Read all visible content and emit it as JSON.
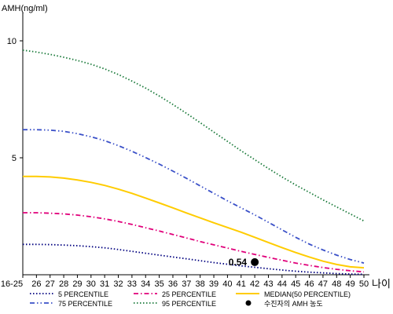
{
  "chart_data": {
    "type": "line",
    "ylabel": "AMH(ng/ml)",
    "xlabel": "나이",
    "categories": [
      "16-25",
      "26",
      "27",
      "28",
      "29",
      "30",
      "31",
      "32",
      "33",
      "34",
      "35",
      "36",
      "37",
      "38",
      "39",
      "40",
      "41",
      "42",
      "43",
      "44",
      "45",
      "46",
      "47",
      "48",
      "49",
      "50"
    ],
    "yticks": [
      5,
      10
    ],
    "ylim": [
      0,
      11
    ],
    "series": [
      {
        "name": "5 PERCENTILE",
        "color": "#00007f",
        "dash": "dot",
        "values": [
          1.3,
          1.3,
          1.29,
          1.27,
          1.24,
          1.2,
          1.15,
          1.08,
          1.0,
          0.92,
          0.84,
          0.76,
          0.68,
          0.6,
          0.52,
          0.45,
          0.38,
          0.32,
          0.26,
          0.2,
          0.15,
          0.11,
          0.08,
          0.05,
          0.03,
          0.02
        ]
      },
      {
        "name": "25 PERCENTILE",
        "color": "#e0007a",
        "dash": "dashdot",
        "values": [
          2.65,
          2.65,
          2.63,
          2.6,
          2.55,
          2.48,
          2.39,
          2.28,
          2.15,
          2.01,
          1.87,
          1.72,
          1.57,
          1.42,
          1.28,
          1.14,
          1.0,
          0.87,
          0.74,
          0.62,
          0.5,
          0.4,
          0.31,
          0.23,
          0.17,
          0.12
        ]
      },
      {
        "name": "MEDIAN(50 PERCENTILE)",
        "color": "#ffcc00",
        "dash": "solid",
        "values": [
          4.2,
          4.2,
          4.18,
          4.13,
          4.05,
          3.95,
          3.82,
          3.66,
          3.48,
          3.28,
          3.07,
          2.86,
          2.64,
          2.43,
          2.22,
          2.02,
          1.82,
          1.6,
          1.38,
          1.16,
          0.95,
          0.76,
          0.58,
          0.44,
          0.34,
          0.3
        ]
      },
      {
        "name": "75 PERCENTILE",
        "color": "#3a50c8",
        "dash": "dashdotdot",
        "values": [
          6.2,
          6.2,
          6.18,
          6.13,
          6.03,
          5.9,
          5.73,
          5.52,
          5.28,
          5.01,
          4.73,
          4.43,
          4.12,
          3.8,
          3.48,
          3.16,
          2.86,
          2.56,
          2.24,
          1.92,
          1.6,
          1.31,
          1.06,
          0.84,
          0.65,
          0.5
        ]
      },
      {
        "name": "95 PERCENTILE",
        "color": "#1a7a3a",
        "dash": "dot",
        "values": [
          9.6,
          9.52,
          9.42,
          9.3,
          9.16,
          9.0,
          8.8,
          8.56,
          8.28,
          7.98,
          7.64,
          7.28,
          6.9,
          6.5,
          6.1,
          5.7,
          5.3,
          4.92,
          4.54,
          4.18,
          3.84,
          3.52,
          3.2,
          2.9,
          2.6,
          2.3
        ]
      }
    ],
    "marker": {
      "name": "수진자의 AMH 농도",
      "x": "42",
      "y": 0.54,
      "label": "0.54",
      "color": "#000000"
    },
    "legend": [
      {
        "name": "5 PERCENTILE",
        "color": "#00007f",
        "dash": "dot"
      },
      {
        "name": "25 PERCENTILE",
        "color": "#e0007a",
        "dash": "dashdot"
      },
      {
        "name": "MEDIAN(50 PERCENTILE)",
        "color": "#ffcc00",
        "dash": "solid"
      },
      {
        "name": "75 PERCENTILE",
        "color": "#3a50c8",
        "dash": "dashdotdot"
      },
      {
        "name": "95 PERCENTILE",
        "color": "#1a7a3a",
        "dash": "dot"
      },
      {
        "name": "수진자의 AMH 농도",
        "color": "#000000",
        "dash": "marker"
      }
    ],
    "legend_position": "bottom",
    "grid": false
  }
}
